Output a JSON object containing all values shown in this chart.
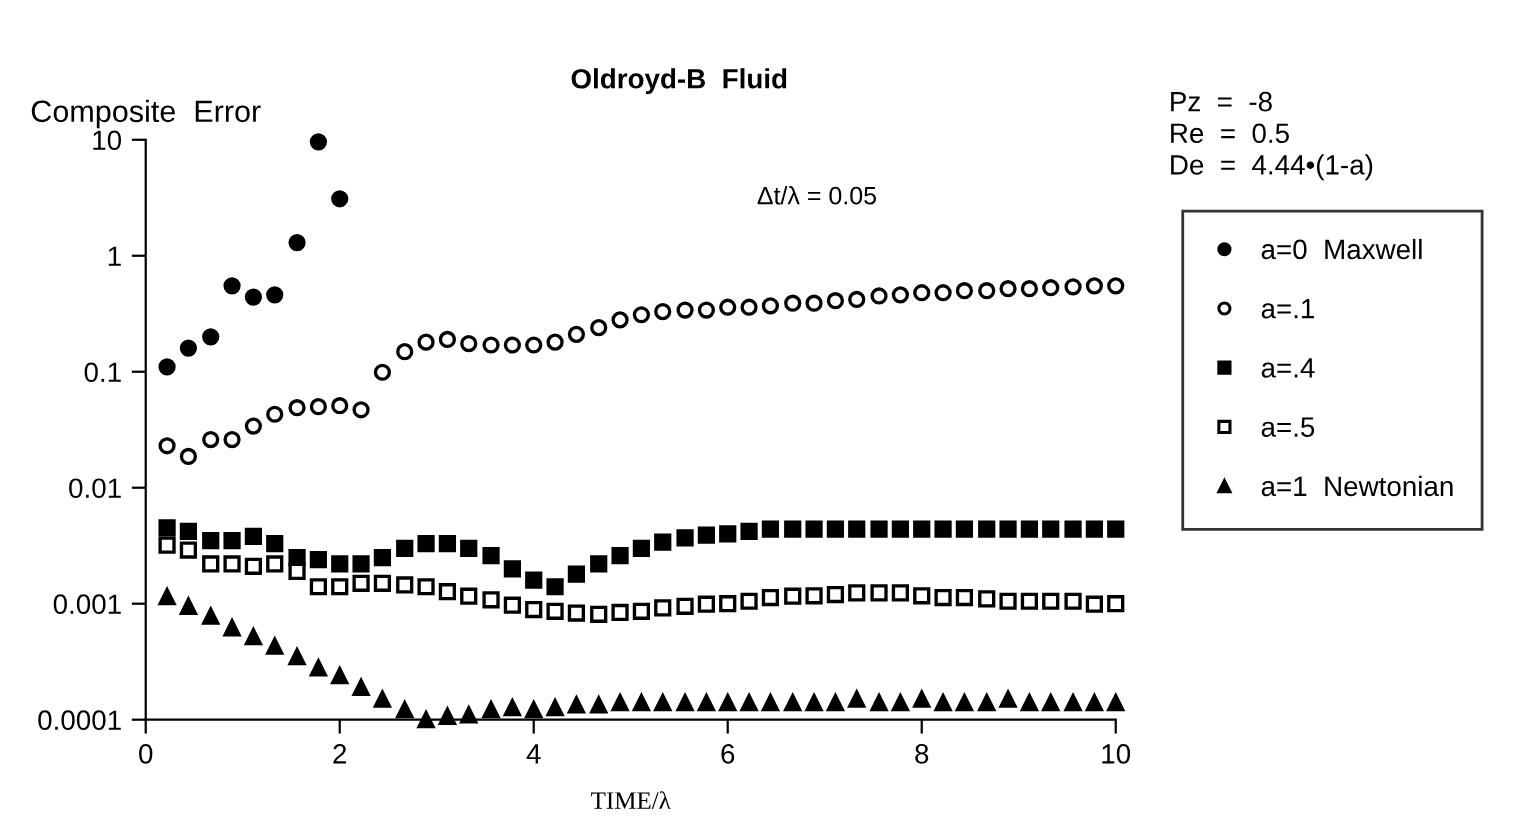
{
  "chart_data": {
    "type": "scatter",
    "title": "Oldroyd-B  Fluid",
    "ylabel": "Composite  Error",
    "xlabel": "TIME/λ",
    "x": [
      0.22,
      0.44,
      0.67,
      0.89,
      1.11,
      1.33,
      1.56,
      1.78,
      2.0,
      2.22,
      2.44,
      2.67,
      2.89,
      3.11,
      3.33,
      3.56,
      3.78,
      4.0,
      4.22,
      4.44,
      4.67,
      4.89,
      5.11,
      5.33,
      5.56,
      5.78,
      6.0,
      6.22,
      6.44,
      6.67,
      6.89,
      7.11,
      7.33,
      7.56,
      7.78,
      8.0,
      8.22,
      8.44,
      8.67,
      8.89,
      9.11,
      9.33,
      9.56,
      9.78,
      10.0
    ],
    "series": [
      {
        "name": "a=0  Maxwell",
        "color": "#000000",
        "marker": "circle",
        "x": [
          0.22,
          0.44,
          0.67,
          0.89,
          1.11,
          1.33,
          1.56,
          1.78,
          2.0
        ],
        "values": [
          0.11,
          0.16,
          0.2,
          0.55,
          0.44,
          0.46,
          1.3,
          9.6,
          3.1
        ]
      },
      {
        "name": "a=.1",
        "color": "#ffffff",
        "marker": "circle",
        "values": [
          0.023,
          0.0186,
          0.026,
          0.026,
          0.034,
          0.043,
          0.049,
          0.05,
          0.051,
          0.047,
          0.099,
          0.149,
          0.18,
          0.19,
          0.175,
          0.17,
          0.17,
          0.17,
          0.18,
          0.21,
          0.24,
          0.28,
          0.31,
          0.33,
          0.34,
          0.34,
          0.36,
          0.36,
          0.37,
          0.39,
          0.39,
          0.41,
          0.42,
          0.45,
          0.46,
          0.48,
          0.48,
          0.5,
          0.5,
          0.52,
          0.52,
          0.53,
          0.54,
          0.55,
          0.55
        ]
      },
      {
        "name": "a=.4",
        "color": "#000000",
        "marker": "square",
        "values": [
          0.0045,
          0.0042,
          0.0035,
          0.0035,
          0.0038,
          0.0033,
          0.0025,
          0.0024,
          0.0022,
          0.0022,
          0.0025,
          0.003,
          0.0033,
          0.0033,
          0.003,
          0.0026,
          0.002,
          0.0016,
          0.0014,
          0.0018,
          0.0022,
          0.0026,
          0.003,
          0.0034,
          0.0037,
          0.0039,
          0.004,
          0.0042,
          0.0044,
          0.0044,
          0.0044,
          0.0044,
          0.0044,
          0.0044,
          0.0044,
          0.0044,
          0.0044,
          0.0044,
          0.0044,
          0.0044,
          0.0044,
          0.0044,
          0.0044,
          0.0044,
          0.0044
        ]
      },
      {
        "name": "a=.5",
        "color": "#ffffff",
        "marker": "square",
        "values": [
          0.0032,
          0.0029,
          0.0022,
          0.0022,
          0.0021,
          0.0022,
          0.0019,
          0.0014,
          0.0014,
          0.0015,
          0.0015,
          0.00145,
          0.0014,
          0.00127,
          0.00116,
          0.00108,
          0.00097,
          0.00089,
          0.00086,
          0.00083,
          0.00081,
          0.00084,
          0.00086,
          0.00092,
          0.00095,
          0.00099,
          0.001,
          0.00105,
          0.00113,
          0.00116,
          0.00117,
          0.0012,
          0.00124,
          0.00124,
          0.00124,
          0.00117,
          0.00113,
          0.00113,
          0.0011,
          0.00105,
          0.00105,
          0.00105,
          0.00105,
          0.00099,
          0.001
        ]
      },
      {
        "name": "a=1  Newtonian",
        "color": "#000000",
        "marker": "triangle",
        "values": [
          0.00115,
          0.00095,
          0.00078,
          0.00062,
          0.00052,
          0.00043,
          0.00035,
          0.00028,
          0.00024,
          0.00019,
          0.00015,
          0.000122,
          0.0001,
          0.000107,
          0.00011,
          0.000122,
          0.000127,
          0.000122,
          0.000127,
          0.000134,
          0.000134,
          0.00014,
          0.00014,
          0.00014,
          0.00014,
          0.00014,
          0.00014,
          0.00014,
          0.00014,
          0.00014,
          0.00014,
          0.00014,
          0.00015,
          0.00014,
          0.00014,
          0.00015,
          0.00014,
          0.00014,
          0.00014,
          0.00015,
          0.00014,
          0.00014,
          0.00014,
          0.00014,
          0.00014
        ]
      }
    ],
    "log": "y",
    "xlim": [
      0,
      10
    ],
    "ylim": [
      0.0001,
      10
    ],
    "xticks": [
      0,
      2,
      4,
      6,
      8,
      10
    ],
    "yticks": [
      {
        "value": 0.0001,
        "label": "0.0001"
      },
      {
        "value": 0.001,
        "label": "0.001"
      },
      {
        "value": 0.01,
        "label": "0.01"
      },
      {
        "value": 0.1,
        "label": "0.1"
      },
      {
        "value": 1,
        "label": "1"
      },
      {
        "value": 10,
        "label": "10"
      }
    ],
    "grid": false,
    "legend": "right",
    "annotations": [
      "Pz  =  -8",
      "Re  =  0.5",
      "De  =  4.44•(1-a)",
      "Δt/λ = 0.05"
    ]
  }
}
